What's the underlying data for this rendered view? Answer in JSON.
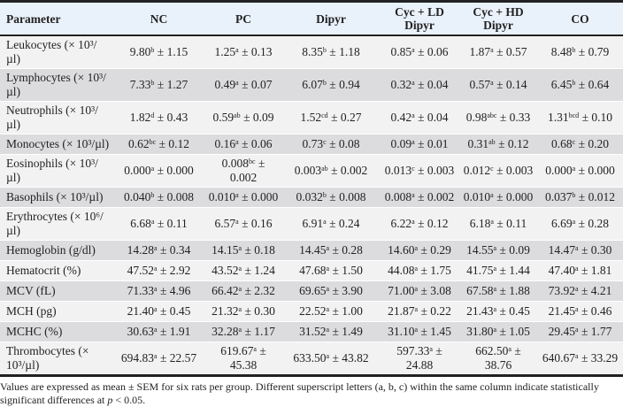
{
  "table": {
    "headers": [
      "Parameter",
      "NC",
      "PC",
      "Dipyr",
      "Cyc + LD\nDipyr",
      "Cyc + HD\nDipyr",
      "CO"
    ],
    "rows": [
      {
        "parameter": "Leukocytes (× 10³/µl)",
        "lines": 2,
        "cells": [
          [
            "9.80",
            "b",
            "1.15"
          ],
          [
            "1.25",
            "a",
            "0.13"
          ],
          [
            "8.35",
            "b",
            "1.18"
          ],
          [
            "0.85",
            "a",
            "0.06"
          ],
          [
            "1.87",
            "a",
            "0.57"
          ],
          [
            "8.48",
            "b",
            "0.79"
          ]
        ]
      },
      {
        "parameter": "Lymphocytes (× 10³/µl)",
        "lines": 2,
        "cells": [
          [
            "7.33",
            "b",
            "1.27"
          ],
          [
            "0.49",
            "a",
            "0.07"
          ],
          [
            "6.07",
            "b",
            "0.94"
          ],
          [
            "0.32",
            "a",
            "0.04"
          ],
          [
            "0.57",
            "a",
            "0.14"
          ],
          [
            "6.45",
            "b",
            "0.64"
          ]
        ]
      },
      {
        "parameter": "Neutrophils (× 10³/µl)",
        "lines": 2,
        "cells": [
          [
            "1.82",
            "d",
            "0.43"
          ],
          [
            "0.59",
            "ab",
            "0.09"
          ],
          [
            "1.52",
            "cd",
            "0.27"
          ],
          [
            "0.42",
            "a",
            "0.04"
          ],
          [
            "0.98",
            "abc",
            "0.33"
          ],
          [
            "1.31",
            "bcd",
            "0.10"
          ]
        ]
      },
      {
        "parameter": "Monocytes (× 10³/µl)",
        "lines": 1,
        "cells": [
          [
            "0.62",
            "bc",
            "0.12"
          ],
          [
            "0.16",
            "a",
            "0.06"
          ],
          [
            "0.73",
            "c",
            "0.08"
          ],
          [
            "0.09",
            "a",
            "0.01"
          ],
          [
            "0.31",
            "ab",
            "0.12"
          ],
          [
            "0.68",
            "c",
            "0.20"
          ]
        ]
      },
      {
        "parameter": "Eosinophils (× 10³/µl)",
        "lines": 2,
        "cells": [
          [
            "0.000",
            "a",
            "0.000"
          ],
          [
            "0.008",
            "bc",
            "0.002"
          ],
          [
            "0.003",
            "ab",
            "0.002"
          ],
          [
            "0.013",
            "c",
            "0.003"
          ],
          [
            "0.012",
            "c",
            "0.003"
          ],
          [
            "0.000",
            "a",
            "0.000"
          ]
        ]
      },
      {
        "parameter": "Basophils (× 10³/µl)",
        "lines": 1,
        "cells": [
          [
            "0.040",
            "b",
            "0.008"
          ],
          [
            "0.010",
            "a",
            "0.000"
          ],
          [
            "0.032",
            "b",
            "0.008"
          ],
          [
            "0.008",
            "a",
            "0.002"
          ],
          [
            "0.010",
            "a",
            "0.000"
          ],
          [
            "0.037",
            "b",
            "0.012"
          ]
        ]
      },
      {
        "parameter": "Erythrocytes (× 10⁶/µl)",
        "lines": 2,
        "cells": [
          [
            "6.68",
            "a",
            "0.11"
          ],
          [
            "6.57",
            "a",
            "0.16"
          ],
          [
            "6.91",
            "a",
            "0.24"
          ],
          [
            "6.22",
            "a",
            "0.12"
          ],
          [
            "6.18",
            "a",
            "0.11"
          ],
          [
            "6.69",
            "a",
            "0.28"
          ]
        ]
      },
      {
        "parameter": "Hemoglobin (g/dl)",
        "lines": 1,
        "cells": [
          [
            "14.28",
            "a",
            "0.34"
          ],
          [
            "14.15",
            "a",
            "0.18"
          ],
          [
            "14.45",
            "a",
            "0.28"
          ],
          [
            "14.60",
            "a",
            "0.29"
          ],
          [
            "14.55",
            "a",
            "0.09"
          ],
          [
            "14.47",
            "a",
            "0.30"
          ]
        ]
      },
      {
        "parameter": "Hematocrit (%)",
        "lines": 1,
        "cells": [
          [
            "47.52",
            "a",
            "2.92"
          ],
          [
            "43.52",
            "a",
            "1.24"
          ],
          [
            "47.68",
            "a",
            "1.50"
          ],
          [
            "44.08",
            "a",
            "1.75"
          ],
          [
            "41.75",
            "a",
            "1.44"
          ],
          [
            "47.40",
            "a",
            "1.81"
          ]
        ]
      },
      {
        "parameter": "MCV (fL)",
        "lines": 1,
        "cells": [
          [
            "71.33",
            "a",
            "4.96"
          ],
          [
            "66.42",
            "a",
            "2.32"
          ],
          [
            "69.65",
            "a",
            "3.90"
          ],
          [
            "71.00",
            "a",
            "3.08"
          ],
          [
            "67.58",
            "a",
            "1.88"
          ],
          [
            "73.92",
            "a",
            "4.21"
          ]
        ]
      },
      {
        "parameter": "MCH (pg)",
        "lines": 1,
        "cells": [
          [
            "21.40",
            "a",
            "0.45"
          ],
          [
            "21.32",
            "a",
            "0.30"
          ],
          [
            "22.52",
            "a",
            "1.00"
          ],
          [
            "21.87",
            "a",
            "0.22"
          ],
          [
            "21.43",
            "a",
            "0.45"
          ],
          [
            "21.45",
            "a",
            "0.46"
          ]
        ]
      },
      {
        "parameter": "MCHC (%)",
        "lines": 1,
        "cells": [
          [
            "30.63",
            "a",
            "1.91"
          ],
          [
            "32.28",
            "a",
            "1.17"
          ],
          [
            "31.52",
            "a",
            "1.49"
          ],
          [
            "31.10",
            "a",
            "1.45"
          ],
          [
            "31.80",
            "a",
            "1.05"
          ],
          [
            "29.45",
            "a",
            "1.77"
          ]
        ]
      },
      {
        "parameter": "Thrombocytes (× 10³/µl)",
        "lines": 2,
        "cells": [
          [
            "694.83",
            "a",
            "22.57"
          ],
          [
            "619.67",
            "a",
            "45.38"
          ],
          [
            "633.50",
            "a",
            "43.82"
          ],
          [
            "597.33",
            "a",
            "24.88"
          ],
          [
            "662.50",
            "a",
            "38.76"
          ],
          [
            "640.67",
            "a",
            "33.29"
          ]
        ]
      }
    ]
  },
  "footnote": {
    "text": "Values are expressed as mean ± SEM for six rats per group. Different superscript letters (a, b, c) within the same column indicate statistically significant differences at ",
    "p_symbol": "p",
    "tail": " < 0.05."
  },
  "colors": {
    "header_bg": "#e9f1fa",
    "row_light": "#f2f2f3",
    "row_dark": "#dcdcde"
  }
}
